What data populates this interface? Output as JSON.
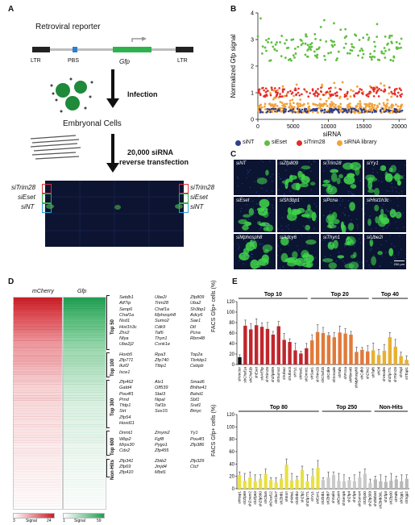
{
  "panels": {
    "a": {
      "letter": "A",
      "title": "Retroviral reporter",
      "ltr_left": "LTR",
      "pbs": "PBS",
      "gfp": "Gfp",
      "ltr_right": "LTR",
      "infection": "Infection",
      "cells": "Embryonal Cells",
      "transfection_line1": "20,000 siRNA",
      "transfection_line2": "reverse transfection",
      "row_labels_left": [
        "siTrim28",
        "siEset",
        "siNT"
      ],
      "row_labels_right": [
        "siTrim28",
        "siEset",
        "siNT"
      ],
      "colors": {
        "trim28": "#e0303a",
        "eset": "#3aa84a",
        "nt": "#2fa2d8"
      }
    },
    "b": {
      "letter": "B",
      "legend": [
        {
          "label": "siNT",
          "color": "#2e3f8f"
        },
        {
          "label": "siEset",
          "color": "#5fbf3f"
        },
        {
          "label": "siTrim28",
          "color": "#e52b2b"
        },
        {
          "label": "siRNA library",
          "color": "#f2a23a"
        }
      ]
    },
    "c": {
      "letter": "C",
      "tiles": [
        "siNT",
        "siZfp809",
        "siTrim28",
        "siYy1",
        "siEset",
        "siSh3bp1",
        "siPcna",
        "siHist1h3c",
        "siMphosph8",
        "siAdcy6",
        "siThyn1",
        "siUbe2i"
      ],
      "scale_bar": "200 µm"
    },
    "d": {
      "letter": "D",
      "header_left": "mCherry",
      "header_right": "Gfp",
      "scale_left": {
        "min": "3",
        "label": "Signal",
        "max": "24"
      },
      "scale_right": {
        "min": "1",
        "label": "Signal",
        "max": "59"
      },
      "groups": [
        {
          "name": "Top 50",
          "columns": [
            [
              "Setdb1",
              "Atf7ip",
              "Senp6",
              "Chaf1a",
              "Nsd1",
              "Hist1h3c",
              "Zhx2",
              "Nfya",
              "Ube2j2"
            ],
            [
              "Ube2i",
              "Trim28",
              "Chaf1a",
              "Mphosph8",
              "Sumo2",
              "Cdk9",
              "Taf6",
              "Thyn1",
              "Csnk1e"
            ],
            [
              "Zfp809",
              "Uba2",
              "Sh3bp1",
              "Adcy6",
              "Sae1",
              "Dtl",
              "Pcna",
              "Rbm48"
            ]
          ]
        },
        {
          "name": "Top 100",
          "columns": [
            [
              "Hoxb5",
              "Zfp771",
              "Ikzf2",
              "Isce1"
            ],
            [
              "Rpa3",
              "Zfp740",
              "Ttbp1"
            ],
            [
              "Top2a",
              "Tbrkbp1",
              "Cebpb"
            ]
          ]
        },
        {
          "name": "Top 300",
          "columns": [
            [
              "Zfp462",
              "Gatd4",
              "Pou4f1",
              "Prnd",
              "Tfdp1",
              "Sirt",
              "Zfp54",
              "Hoxd11"
            ],
            [
              "Alx1",
              "Olf539",
              "Stat3",
              "Nipal",
              "Taf1b",
              "Sox15"
            ],
            [
              "Smad6",
              "Bhlhe41",
              "Bahd1",
              "Sbf1",
              "Sraf1",
              "Bmyc"
            ]
          ]
        },
        {
          "name": "Top 600",
          "columns": [
            [
              "Dnmt1",
              "Wbp2",
              "Mrps30",
              "Cdx2"
            ],
            [
              "Zmym2",
              "Fgf8",
              "Pygo1",
              "Zfp455"
            ],
            [
              "Yy1",
              "Pou4f1",
              "Zfp386"
            ]
          ]
        },
        {
          "name": "Non-Hits",
          "columns": [
            [
              "Zfp341",
              "Zfp69",
              "Zfp410"
            ],
            [
              "Zbtb2",
              "Jmjd4",
              "Mbd1"
            ],
            [
              "Zfp329",
              "Ctcf"
            ]
          ]
        }
      ]
    },
    "e": {
      "letter": "E",
      "ylabel": "FACS Gfp+ cells (%)",
      "top": {
        "yticks": [
          "0",
          "20",
          "40",
          "60",
          "80",
          "100",
          "120"
        ],
        "groups": [
          {
            "label": "Top 10",
            "color": "#c0262c",
            "bars": [
              {
                "name": "shVector",
                "value": 14
              },
              {
                "name": "shChaf1a",
                "value": 74
              },
              {
                "name": "shChaf1b",
                "value": 67
              },
              {
                "name": "shEset",
                "value": 75
              },
              {
                "name": "shAtf7ip",
                "value": 72
              },
              {
                "name": "shTrim28",
                "value": 68
              },
              {
                "name": "shZfp809",
                "value": 57
              },
              {
                "name": "shSumo2",
                "value": 73
              },
              {
                "name": "shUba2",
                "value": 47
              },
              {
                "name": "shUbe2i",
                "value": 43
              },
              {
                "name": "shYy1",
                "value": 27
              },
              {
                "name": "shNsd1",
                "value": 21
              },
              {
                "name": "shDnmt1",
                "value": 31
              }
            ]
          },
          {
            "label": "Top 20",
            "color": "#e07a3a",
            "bars": [
              {
                "name": "shSae1",
                "value": 46
              },
              {
                "name": "shTrim28",
                "value": 62
              },
              {
                "name": "shChaf1b",
                "value": 60
              },
              {
                "name": "shCdk9",
                "value": 56
              },
              {
                "name": "shSmad6",
                "value": 52
              },
              {
                "name": "shTaf6",
                "value": 61
              },
              {
                "name": "shPcna",
                "value": 59
              },
              {
                "name": "shRbm48",
                "value": 57
              },
              {
                "name": "shMphosph8",
                "value": 24
              },
              {
                "name": "shCdk9",
                "value": 28
              },
              {
                "name": "shZhx2",
                "value": 25
              }
            ]
          },
          {
            "label": "Top 40",
            "color": "#e8b030",
            "bars": [
              {
                "name": "shTaf6",
                "value": 27
              },
              {
                "name": "shDtl",
                "value": 18
              },
              {
                "name": "shHoxb5",
                "value": 26
              },
              {
                "name": "shZfp771",
                "value": 52
              },
              {
                "name": "shTrim28",
                "value": 34
              },
              {
                "name": "shTopl",
                "value": 16
              },
              {
                "name": "shTopl1",
                "value": 9
              }
            ]
          }
        ]
      },
      "bottom": {
        "yticks": [
          "0",
          "20",
          "40",
          "60",
          "80",
          "100",
          "120"
        ],
        "groups": [
          {
            "label": "Top 80",
            "color": "#e8e040",
            "bars": [
              {
                "name": "shNsp1",
                "value": 22
              },
              {
                "name": "shZfp69",
                "value": 13
              },
              {
                "name": "shZnam2",
                "value": 18
              },
              {
                "name": "shZfp63",
                "value": 12
              },
              {
                "name": "shZfp560",
                "value": 16
              },
              {
                "name": "shCbx5",
                "value": 24
              },
              {
                "name": "shDcaf12",
                "value": 14
              },
              {
                "name": "shCbx7",
                "value": 10
              },
              {
                "name": "shZbtb1",
                "value": 16
              },
              {
                "name": "shEsrr",
                "value": 39
              },
              {
                "name": "shMta1",
                "value": 13
              },
              {
                "name": "shZbtb2",
                "value": 15
              },
              {
                "name": "shZfp2",
                "value": 30
              },
              {
                "name": "shZfp771",
                "value": 12
              },
              {
                "name": "shYy1",
                "value": 20
              },
              {
                "name": "shEsrr1",
                "value": 34
              }
            ]
          },
          {
            "label": "Top 250",
            "color": "#c9c9c9",
            "bars": [
              {
                "name": "shZbtb1",
                "value": 14
              },
              {
                "name": "shZbtb7",
                "value": 18
              },
              {
                "name": "shSall4",
                "value": 22
              },
              {
                "name": "shEset4",
                "value": 13
              },
              {
                "name": "shSenp6",
                "value": 12
              },
              {
                "name": "shZfp4",
                "value": 14
              },
              {
                "name": "shZfp6",
                "value": 12
              },
              {
                "name": "shSumo4",
                "value": 18
              },
              {
                "name": "shZfp30",
                "value": 24
              },
              {
                "name": "shZfp309",
                "value": 9
              }
            ]
          },
          {
            "label": "Non-Hits",
            "color": "#b8b8b8",
            "bars": [
              {
                "name": "shZbtb30",
                "value": 15
              },
              {
                "name": "shZbtb30L",
                "value": 12
              },
              {
                "name": "shZfp3",
                "value": 11
              },
              {
                "name": "shZfp30",
                "value": 13
              },
              {
                "name": "shTaf6",
                "value": 15
              },
              {
                "name": "shSgp1",
                "value": 12
              },
              {
                "name": "shSgp2",
                "value": 16
              }
            ]
          }
        ]
      }
    }
  }
}
